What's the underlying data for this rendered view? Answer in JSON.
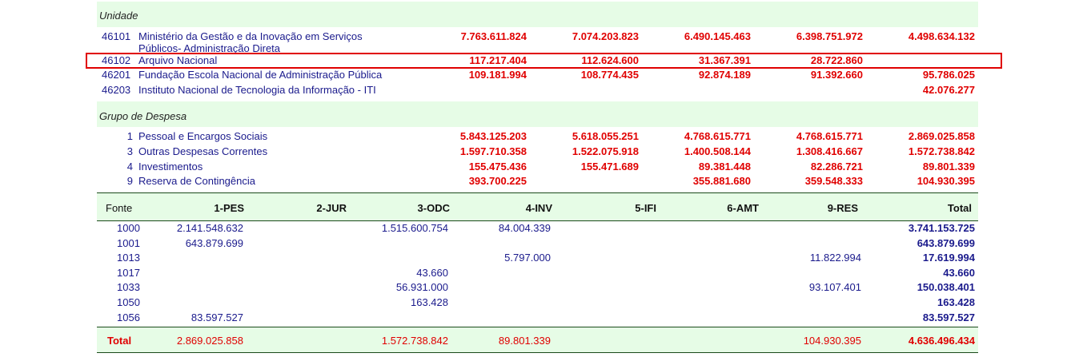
{
  "unidade": {
    "title": "Unidade",
    "rows": [
      {
        "code": "46101",
        "name": "Ministério da Gestão e da Inovação em Serviços",
        "name2": "Públicos- Administração Direta",
        "v1": "7.763.611.824",
        "v2": "7.074.203.823",
        "v3": "6.490.145.463",
        "v4": "6.398.751.972",
        "v5": "4.498.634.132"
      },
      {
        "code": "46102",
        "name": "Arquivo Nacional",
        "v1": "117.217.404",
        "v2": "112.624.600",
        "v3": "31.367.391",
        "v4": "28.722.860",
        "v5": ""
      },
      {
        "code": "46201",
        "name": "Fundação Escola Nacional de Administração Pública",
        "v1": "109.181.994",
        "v2": "108.774.435",
        "v3": "92.874.189",
        "v4": "91.392.660",
        "v5": "95.786.025"
      },
      {
        "code": "46203",
        "name": "Instituto Nacional de Tecnologia da Informação - ITI",
        "v1": "",
        "v2": "",
        "v3": "",
        "v4": "",
        "v5": "42.076.277"
      }
    ]
  },
  "grupo": {
    "title": "Grupo de Despesa",
    "rows": [
      {
        "code": "1",
        "name": "Pessoal e Encargos Sociais",
        "v1": "5.843.125.203",
        "v2": "5.618.055.251",
        "v3": "4.768.615.771",
        "v4": "4.768.615.771",
        "v5": "2.869.025.858"
      },
      {
        "code": "3",
        "name": "Outras Despesas Correntes",
        "v1": "1.597.710.358",
        "v2": "1.522.075.918",
        "v3": "1.400.508.144",
        "v4": "1.308.416.667",
        "v5": "1.572.738.842"
      },
      {
        "code": "4",
        "name": "Investimentos",
        "v1": "155.475.436",
        "v2": "155.471.689",
        "v3": "89.381.448",
        "v4": "82.286.721",
        "v5": "89.801.339"
      },
      {
        "code": "9",
        "name": "Reserva de Contingência",
        "v1": "393.700.225",
        "v2": "",
        "v3": "355.881.680",
        "v4": "359.548.333",
        "v5": "104.930.395"
      }
    ]
  },
  "fonte": {
    "headers": [
      "Fonte",
      "1-PES",
      "2-JUR",
      "3-ODC",
      "4-INV",
      "5-IFI",
      "6-AMT",
      "9-RES",
      "Total"
    ],
    "rows": [
      {
        "fonte": "1000",
        "pes": "2.141.548.632",
        "jur": "",
        "odc": "1.515.600.754",
        "inv": "84.004.339",
        "ifi": "",
        "amt": "",
        "res": "",
        "total": "3.741.153.725"
      },
      {
        "fonte": "1001",
        "pes": "643.879.699",
        "jur": "",
        "odc": "",
        "inv": "",
        "ifi": "",
        "amt": "",
        "res": "",
        "total": "643.879.699"
      },
      {
        "fonte": "1013",
        "pes": "",
        "jur": "",
        "odc": "",
        "inv": "5.797.000",
        "ifi": "",
        "amt": "",
        "res": "11.822.994",
        "total": "17.619.994"
      },
      {
        "fonte": "1017",
        "pes": "",
        "jur": "",
        "odc": "43.660",
        "inv": "",
        "ifi": "",
        "amt": "",
        "res": "",
        "total": "43.660"
      },
      {
        "fonte": "1033",
        "pes": "",
        "jur": "",
        "odc": "56.931.000",
        "inv": "",
        "ifi": "",
        "amt": "",
        "res": "93.107.401",
        "total": "150.038.401"
      },
      {
        "fonte": "1050",
        "pes": "",
        "jur": "",
        "odc": "163.428",
        "inv": "",
        "ifi": "",
        "amt": "",
        "res": "",
        "total": "163.428"
      },
      {
        "fonte": "1056",
        "pes": "83.597.527",
        "jur": "",
        "odc": "",
        "inv": "",
        "ifi": "",
        "amt": "",
        "res": "",
        "total": "83.597.527"
      }
    ],
    "total": {
      "label": "Total",
      "pes": "2.869.025.858",
      "jur": "",
      "odc": "1.572.738.842",
      "inv": "89.801.339",
      "ifi": "",
      "amt": "",
      "res": "104.930.395",
      "total": "4.636.496.434"
    }
  },
  "colors": {
    "band": "#e6fce6",
    "red": "#e00000",
    "blue": "#1a1a8c"
  }
}
